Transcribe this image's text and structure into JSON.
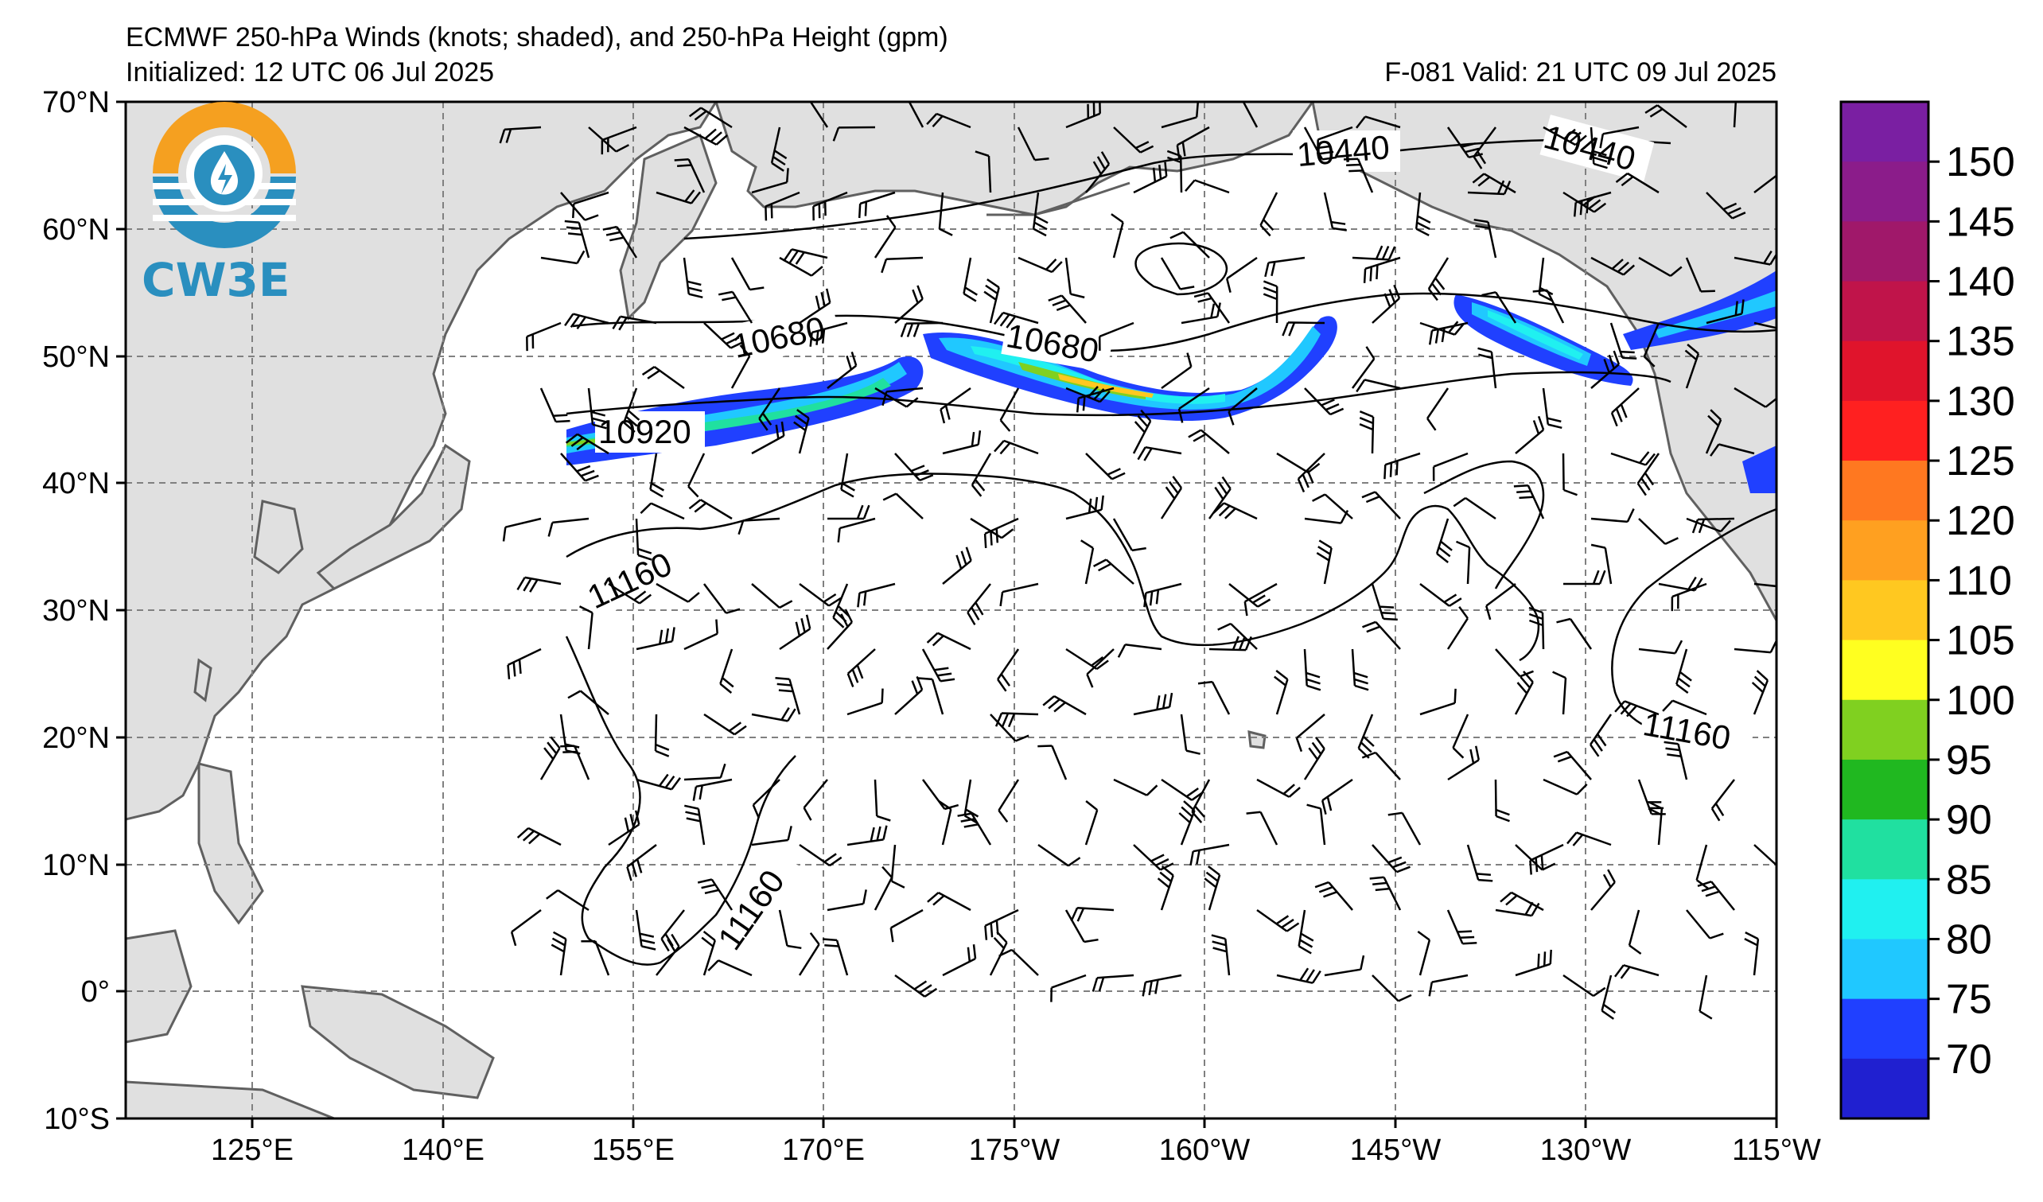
{
  "header": {
    "title": "ECMWF 250-hPa Winds (knots; shaded), and 250-hPa Height (gpm)",
    "initialized": "Initialized: 12 UTC 06 Jul 2025",
    "valid": "F-081  Valid: 21 UTC 09 Jul 2025"
  },
  "logo": {
    "text": "CW3E"
  },
  "axes": {
    "lat_labels": [
      "70°N",
      "60°N",
      "50°N",
      "40°N",
      "30°N",
      "20°N",
      "10°N",
      "0°",
      "10°S"
    ],
    "lon_labels": [
      "125°E",
      "140°E",
      "155°E",
      "170°E",
      "175°W",
      "160°W",
      "145°W",
      "130°W",
      "115°W"
    ]
  },
  "contour_labels": [
    "10440",
    "10440",
    "10680",
    "10680",
    "10920",
    "11160",
    "11160",
    "11160"
  ],
  "colorbar": {
    "labels": [
      "150",
      "145",
      "140",
      "135",
      "130",
      "125",
      "120",
      "110",
      "105",
      "100",
      "95",
      "90",
      "85",
      "80",
      "75",
      "70"
    ],
    "colors": [
      "#7a1fa2",
      "#8b1c8a",
      "#a0186a",
      "#c0144a",
      "#e0142c",
      "#ff2020",
      "#ff7820",
      "#ffa020",
      "#ffc820",
      "#ffff20",
      "#80d020",
      "#20b820",
      "#20e0a0",
      "#20f0f0",
      "#20c8ff",
      "#2040ff",
      "#2020d0"
    ]
  },
  "colors": {
    "land": "#e0e0e0",
    "coast": "#606060",
    "grid": "#808080",
    "logo_orange": "#f5a020",
    "logo_blue": "#2a8fbf"
  }
}
